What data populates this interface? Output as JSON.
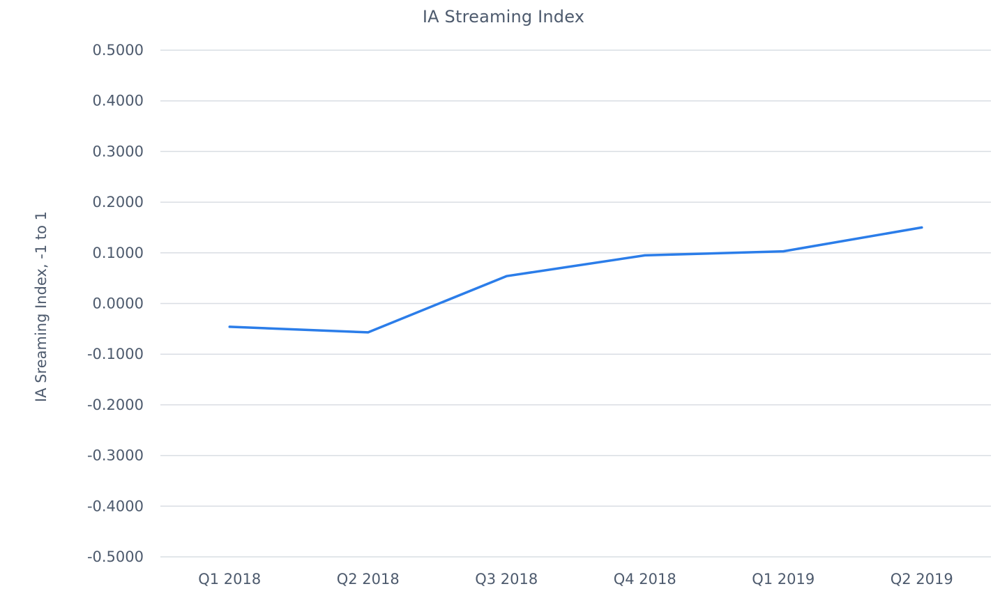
{
  "chart_data": {
    "type": "line",
    "title": "IA Streaming Index",
    "xlabel": "",
    "ylabel": "IA Sreaming Index, -1 to 1",
    "categories": [
      "Q1 2018",
      "Q2 2018",
      "Q3 2018",
      "Q4 2018",
      "Q1 2019",
      "Q2 2019"
    ],
    "series": [
      {
        "values": [
          -0.046,
          -0.057,
          0.054,
          0.095,
          0.103,
          0.15
        ],
        "color": "#2b7de9"
      }
    ],
    "ylim": [
      -0.5,
      0.5
    ],
    "yticks": [
      0.5,
      0.4,
      0.3,
      0.2,
      0.1,
      0.0,
      -0.1,
      -0.2,
      -0.3,
      -0.4,
      -0.5
    ],
    "ytick_labels": [
      "0.5000",
      "0.4000",
      "0.3000",
      "0.2000",
      "0.1000",
      "0.0000",
      "-0.1000",
      "-0.2000",
      "-0.3000",
      "-0.4000",
      "-0.5000"
    ],
    "grid": true,
    "legend": "none"
  }
}
